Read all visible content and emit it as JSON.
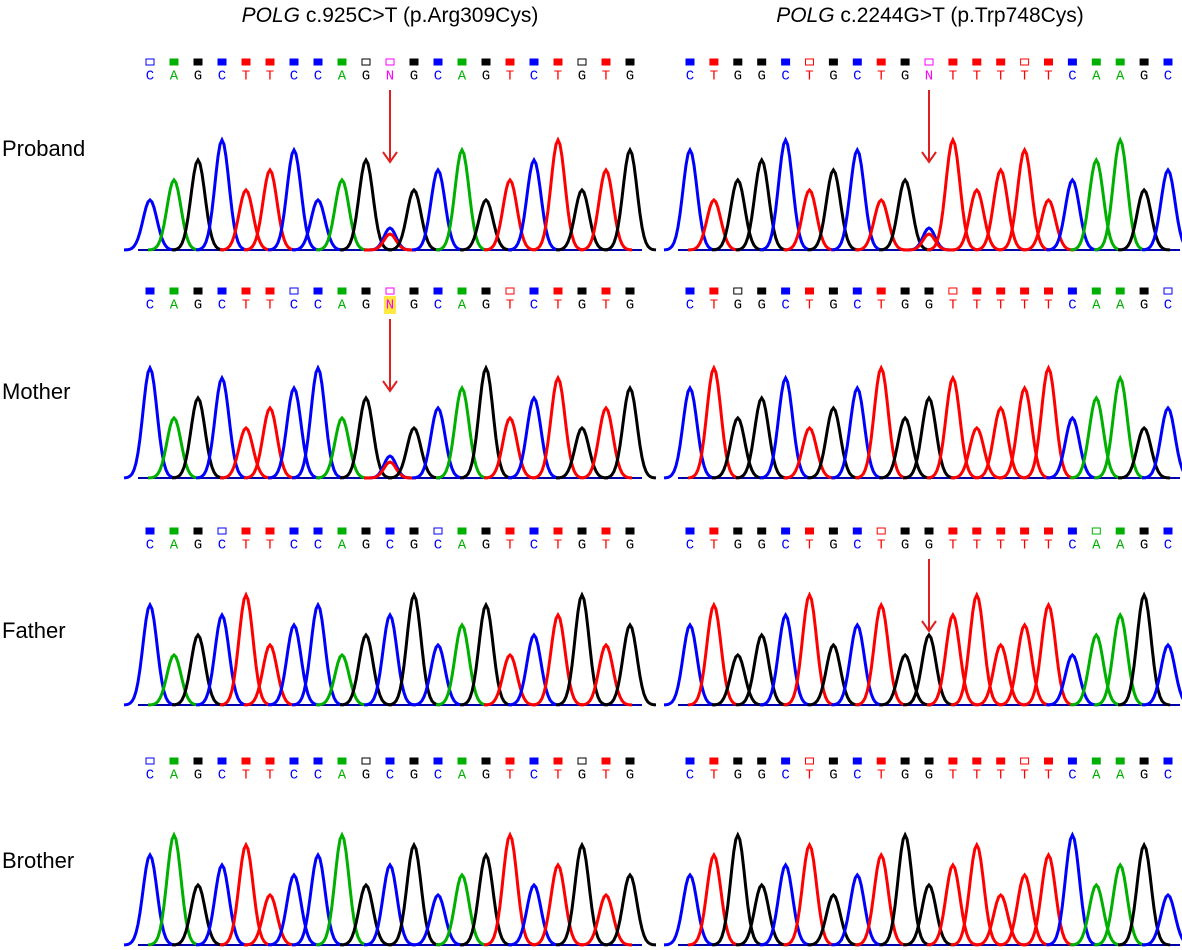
{
  "panels": [
    {
      "gene": "POLG",
      "variant": "c.925C>T (p.Arg309Cys)",
      "rows": [
        {
          "bases": [
            "C",
            "A",
            "G",
            "C",
            "T",
            "T",
            "C",
            "C",
            "A",
            "G",
            "N",
            "G",
            "C",
            "A",
            "G",
            "T",
            "C",
            "T",
            "G",
            "T",
            "G"
          ]
        },
        {
          "bases": [
            "C",
            "A",
            "G",
            "C",
            "T",
            "T",
            "C",
            "C",
            "A",
            "G",
            "N",
            "G",
            "C",
            "A",
            "G",
            "T",
            "C",
            "T",
            "G",
            "T",
            "G"
          ]
        },
        {
          "bases": [
            "C",
            "A",
            "G",
            "C",
            "T",
            "T",
            "C",
            "C",
            "A",
            "G",
            "C",
            "G",
            "C",
            "A",
            "G",
            "T",
            "C",
            "T",
            "G",
            "T",
            "G"
          ]
        },
        {
          "bases": [
            "C",
            "A",
            "G",
            "C",
            "T",
            "T",
            "C",
            "C",
            "A",
            "G",
            "C",
            "G",
            "C",
            "A",
            "G",
            "T",
            "C",
            "T",
            "G",
            "T",
            "G"
          ]
        }
      ]
    },
    {
      "gene": "POLG",
      "variant": "c.2244G>T (p.Trp748Cys)",
      "rows": [
        {
          "bases": [
            "C",
            "T",
            "G",
            "G",
            "C",
            "T",
            "G",
            "C",
            "T",
            "G",
            "N",
            "T",
            "T",
            "T",
            "T",
            "T",
            "C",
            "A",
            "A",
            "G",
            "C"
          ]
        },
        {
          "bases": [
            "C",
            "T",
            "G",
            "G",
            "C",
            "T",
            "G",
            "C",
            "T",
            "G",
            "G",
            "T",
            "T",
            "T",
            "T",
            "T",
            "C",
            "A",
            "A",
            "G",
            "C"
          ]
        },
        {
          "bases": [
            "C",
            "T",
            "G",
            "G",
            "C",
            "T",
            "G",
            "C",
            "T",
            "G",
            "G",
            "T",
            "T",
            "T",
            "T",
            "T",
            "C",
            "A",
            "A",
            "G",
            "C"
          ]
        },
        {
          "bases": [
            "C",
            "T",
            "G",
            "G",
            "C",
            "T",
            "G",
            "C",
            "T",
            "G",
            "G",
            "T",
            "T",
            "T",
            "T",
            "T",
            "C",
            "A",
            "A",
            "G",
            "C"
          ]
        }
      ]
    }
  ],
  "row_labels": [
    "Proband",
    "Mother",
    "Father",
    "Brother"
  ]
}
